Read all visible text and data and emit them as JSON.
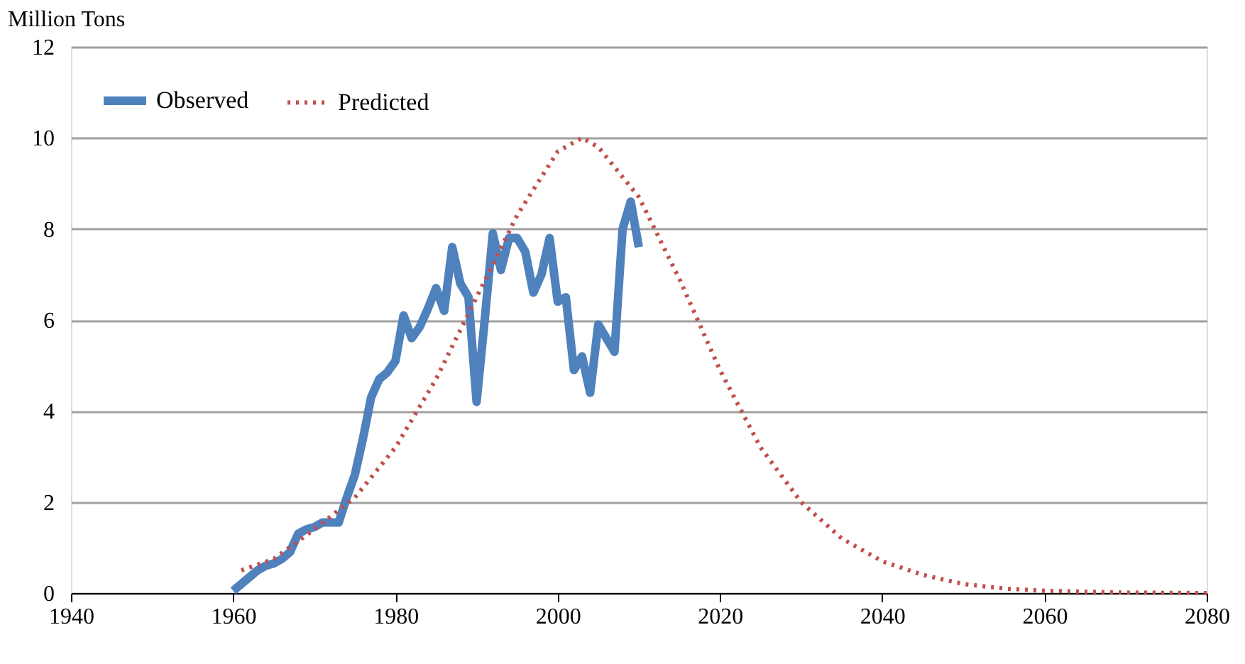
{
  "chart_data": {
    "type": "line",
    "ylabel": "Million Tons",
    "xlim": [
      1940,
      2080
    ],
    "xticks": [
      1940,
      1960,
      1980,
      2000,
      2020,
      2040,
      2060,
      2080
    ],
    "ylim": [
      0,
      12
    ],
    "yticks": [
      0,
      2,
      4,
      6,
      8,
      10,
      12
    ],
    "grid": "y",
    "legend": "top left",
    "series": [
      {
        "name": "Observed",
        "color": "#4f81bd",
        "line_style": "solid",
        "x": [
          1960,
          1961,
          1962,
          1963,
          1964,
          1965,
          1966,
          1967,
          1968,
          1969,
          1970,
          1971,
          1972,
          1973,
          1974,
          1975,
          1976,
          1977,
          1978,
          1979,
          1980,
          1981,
          1982,
          1983,
          1984,
          1985,
          1986,
          1987,
          1988,
          1989,
          1990,
          1991,
          1992,
          1993,
          1994,
          1995,
          1996,
          1997,
          1998,
          1999,
          2000,
          2001,
          2002,
          2003,
          2004,
          2005,
          2006,
          2007,
          2008,
          2009,
          2010
        ],
        "values": [
          0.05,
          0.2,
          0.35,
          0.5,
          0.6,
          0.65,
          0.75,
          0.9,
          1.3,
          1.4,
          1.45,
          1.55,
          1.55,
          1.55,
          2.1,
          2.6,
          3.4,
          4.3,
          4.7,
          4.85,
          5.1,
          6.1,
          5.6,
          5.85,
          6.25,
          6.7,
          6.2,
          7.6,
          6.8,
          6.5,
          4.2,
          6.0,
          7.9,
          7.1,
          7.8,
          7.8,
          7.5,
          6.6,
          7.0,
          7.8,
          6.4,
          6.5,
          4.9,
          5.2,
          4.4,
          5.9,
          5.6,
          5.3,
          8.0,
          8.6,
          7.6
        ]
      },
      {
        "name": "Predicted",
        "color": "#c0504d",
        "line_style": "dotted",
        "x": [
          1961,
          1965,
          1970,
          1975,
          1980,
          1985,
          1990,
          1995,
          2000,
          2003,
          2005,
          2010,
          2015,
          2020,
          2025,
          2030,
          2035,
          2040,
          2045,
          2050,
          2055,
          2060,
          2070,
          2080
        ],
        "values": [
          0.5,
          0.75,
          1.4,
          2.1,
          3.2,
          4.7,
          6.5,
          8.3,
          9.7,
          10.0,
          9.8,
          8.7,
          6.9,
          4.9,
          3.2,
          2.0,
          1.2,
          0.7,
          0.4,
          0.2,
          0.1,
          0.05,
          0.01,
          0.0
        ]
      }
    ]
  }
}
